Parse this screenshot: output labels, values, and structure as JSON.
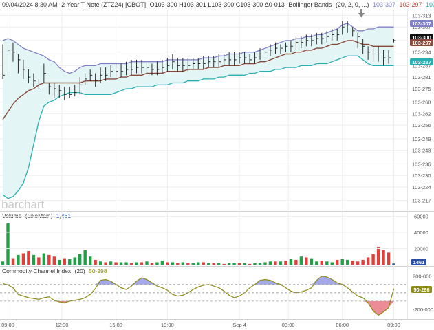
{
  "header": {
    "datetime": "09/04/2024 8:30 AM",
    "instrument": "2-Year T-Note (ZTZ24) [CBOT]",
    "ohlc": "O103-300 H103-301 L103-300 C103-300 Δ0-013",
    "indicator": "Bollinger Bands",
    "indicator_params": "(20, 2, 0, ...)",
    "bb_upper": "103-307",
    "bb_middle": "103-297",
    "bb_lower": "103-287"
  },
  "logo": "barchart",
  "colors": {
    "upper": "#8080c8",
    "middle": "#8a4a3a",
    "lower": "#2ab0b0",
    "band_fill": "#e4f5f5",
    "up_bar": "#2a2a2a",
    "vol_up": "#22a046",
    "vol_down": "#e0403a",
    "vol_last": "#2b4fa8",
    "cci_line": "#8a8a14",
    "cci_pos": "#7c84e0",
    "cci_neg": "#e04050",
    "last_price_tag": "#111111",
    "arrow": "#888888"
  },
  "price_axis": {
    "ticks": [
      "103-313",
      "103-307",
      "103-300",
      "103-294",
      "103-287",
      "103-281",
      "103-275",
      "103-268",
      "103-262",
      "103-256",
      "103-249",
      "103-243",
      "103-236",
      "103-230",
      "103-224",
      "103-217"
    ],
    "tick_values": [
      313,
      307,
      300,
      294,
      287,
      281,
      275,
      268,
      262,
      256,
      249,
      243,
      236,
      230,
      224,
      217
    ],
    "tags": {
      "upper": "103-307",
      "last": "103-300",
      "middle": "103-297",
      "lower": "103-287"
    }
  },
  "volume_pane": {
    "title": "Volume",
    "subtitle": "(LikeMain)",
    "last_value": "1,461",
    "last_tag": "1461",
    "ticks": [
      "60000",
      "40000",
      "20000"
    ],
    "tick_values": [
      60000,
      40000,
      20000
    ]
  },
  "cci_pane": {
    "title": "Commodity Channel Index",
    "params": "(20)",
    "last_value": "50-298",
    "last_tag": "50-298",
    "ticks": [
      "200-000",
      "-200-000"
    ],
    "tick_values": [
      200,
      -200
    ],
    "ref_levels": [
      100,
      0,
      -100
    ]
  },
  "time_axis": {
    "labels": [
      "09:00",
      "12:00",
      "15:00",
      "19:00",
      "Sep 4",
      "03:00",
      "06:00",
      "09:00"
    ],
    "positions": [
      1,
      11.5,
      22,
      32,
      46,
      55.5,
      66,
      76
    ]
  },
  "chart_data": {
    "type": "line",
    "title": "2-Year T-Note (ZTZ24) [CBOT]",
    "price_units": "32nds offsets of 103 (e.g. 300 = 103-300)",
    "ylim": [
      214,
      316
    ],
    "x_range": [
      0,
      77
    ],
    "price_bars": {
      "x": [
        0,
        1,
        2,
        3,
        4,
        5,
        6,
        7,
        8,
        9,
        10,
        11,
        12,
        13,
        14,
        15,
        16,
        17,
        18,
        19,
        20,
        21,
        22,
        23,
        24,
        25,
        26,
        27,
        28,
        29,
        30,
        31,
        32,
        33,
        34,
        35,
        36,
        37,
        38,
        39,
        40,
        41,
        42,
        43,
        44,
        45,
        46,
        47,
        48,
        49,
        50,
        51,
        52,
        53,
        54,
        55,
        56,
        57,
        58,
        59,
        60,
        61,
        62,
        63,
        64,
        65,
        66,
        67,
        68,
        69,
        70,
        71,
        72,
        73,
        74,
        75,
        76
      ],
      "close": [
        282,
        295,
        294,
        290,
        285,
        281,
        279,
        278,
        283,
        276,
        275,
        274,
        272,
        272,
        273,
        277,
        280,
        282,
        279,
        282,
        282,
        284,
        284,
        284,
        285,
        285,
        286,
        286,
        286,
        285,
        285,
        286,
        287,
        289,
        287,
        287,
        287,
        288,
        288,
        288,
        289,
        289,
        289,
        290,
        290,
        290,
        291,
        291,
        290,
        291,
        293,
        294,
        295,
        296,
        296,
        297,
        297,
        299,
        299,
        300,
        300,
        301,
        301,
        302,
        303,
        303,
        307,
        308,
        305,
        302,
        297,
        294,
        293,
        293,
        291,
        291,
        300
      ],
      "high": [
        298,
        298,
        299,
        293,
        290,
        285,
        283,
        280,
        288,
        278,
        278,
        277,
        276,
        276,
        277,
        281,
        283,
        285,
        283,
        286,
        286,
        287,
        288,
        288,
        289,
        290,
        290,
        290,
        289,
        288,
        289,
        290,
        291,
        293,
        291,
        291,
        291,
        291,
        291,
        292,
        292,
        292,
        293,
        293,
        294,
        294,
        294,
        294,
        293,
        294,
        296,
        298,
        298,
        299,
        298,
        299,
        300,
        302,
        302,
        303,
        303,
        304,
        304,
        305,
        306,
        306,
        310,
        310,
        307,
        304,
        301,
        297,
        297,
        297,
        295,
        295,
        301
      ],
      "low": [
        280,
        282,
        289,
        283,
        280,
        278,
        276,
        275,
        278,
        272,
        270,
        270,
        269,
        270,
        271,
        272,
        277,
        279,
        276,
        278,
        279,
        281,
        281,
        281,
        282,
        282,
        283,
        283,
        283,
        282,
        282,
        283,
        284,
        285,
        284,
        284,
        284,
        285,
        285,
        285,
        286,
        286,
        286,
        287,
        287,
        287,
        288,
        288,
        288,
        288,
        290,
        291,
        292,
        293,
        293,
        294,
        294,
        295,
        296,
        297,
        297,
        298,
        298,
        299,
        300,
        300,
        303,
        304,
        302,
        296,
        293,
        290,
        289,
        289,
        287,
        288,
        299
      ]
    },
    "bollinger": {
      "upper": [
        300,
        301,
        300,
        298,
        296,
        295,
        294,
        293,
        292,
        290,
        289,
        286,
        284,
        283,
        284,
        286,
        287,
        287,
        287,
        288,
        288,
        288,
        288,
        288,
        288,
        289,
        289,
        289,
        289,
        289,
        289,
        289,
        290,
        290,
        290,
        290,
        290,
        290,
        290,
        291,
        291,
        291,
        292,
        292,
        293,
        293,
        293,
        294,
        294,
        294,
        295,
        296,
        297,
        298,
        299,
        300,
        300,
        301,
        301,
        302,
        302,
        303,
        303,
        304,
        305,
        306,
        308,
        309,
        307,
        305,
        305,
        306,
        306,
        307,
        307,
        307,
        307
      ],
      "middle": [
        259,
        263,
        267,
        270,
        272,
        274,
        275,
        277,
        278,
        278,
        278,
        278,
        278,
        278,
        278,
        278,
        279,
        279,
        279,
        279,
        280,
        280,
        280,
        281,
        281,
        282,
        282,
        282,
        283,
        283,
        283,
        283,
        284,
        284,
        284,
        284,
        285,
        285,
        285,
        285,
        286,
        286,
        286,
        287,
        287,
        287,
        287,
        288,
        288,
        288,
        289,
        289,
        290,
        291,
        292,
        293,
        293,
        294,
        294,
        295,
        295,
        296,
        296,
        297,
        298,
        298,
        299,
        300,
        300,
        299,
        298,
        298,
        297,
        297,
        297,
        297,
        297
      ],
      "lower": [
        220,
        218,
        219,
        222,
        226,
        234,
        246,
        258,
        266,
        268,
        269,
        271,
        272,
        273,
        273,
        273,
        272,
        272,
        272,
        272,
        272,
        272,
        273,
        274,
        275,
        275,
        276,
        276,
        276,
        276,
        277,
        277,
        277,
        278,
        278,
        278,
        279,
        279,
        279,
        280,
        280,
        280,
        281,
        281,
        282,
        282,
        282,
        282,
        283,
        283,
        284,
        284,
        284,
        285,
        285,
        286,
        286,
        286,
        287,
        287,
        287,
        288,
        288,
        288,
        289,
        290,
        291,
        292,
        292,
        292,
        290,
        288,
        287,
        287,
        287,
        287,
        287
      ]
    },
    "volume": {
      "values": [
        4000,
        51000,
        8000,
        12000,
        14000,
        17000,
        12000,
        9000,
        14000,
        12000,
        10000,
        6000,
        8000,
        7000,
        9000,
        13000,
        18000,
        10000,
        6000,
        4000,
        3000,
        4000,
        3000,
        3000,
        3000,
        2000,
        3000,
        3000,
        4000,
        2000,
        3000,
        5000,
        3000,
        3000,
        2000,
        3000,
        2000,
        2000,
        3000,
        3000,
        2000,
        2000,
        2000,
        1000,
        2000,
        2000,
        2000,
        2000,
        1000,
        2000,
        2000,
        3000,
        4000,
        4000,
        4000,
        5000,
        7000,
        6000,
        10000,
        9000,
        8000,
        4000,
        5000,
        4000,
        3000,
        6000,
        7000,
        6000,
        5000,
        4000,
        6000,
        9000,
        13000,
        22000,
        18000,
        15000,
        1461
      ],
      "direction": [
        "up",
        "up",
        "down",
        "up",
        "down",
        "down",
        "up",
        "down",
        "up",
        "down",
        "down",
        "up",
        "down",
        "up",
        "up",
        "up",
        "up",
        "up",
        "down",
        "up",
        "down",
        "up",
        "down",
        "up",
        "up",
        "down",
        "up",
        "down",
        "up",
        "down",
        "up",
        "up",
        "down",
        "up",
        "down",
        "up",
        "down",
        "up",
        "up",
        "down",
        "up",
        "down",
        "up",
        "down",
        "up",
        "up",
        "down",
        "up",
        "down",
        "up",
        "up",
        "up",
        "up",
        "down",
        "up",
        "down",
        "up",
        "down",
        "up",
        "down",
        "up",
        "up",
        "down",
        "up",
        "up",
        "down",
        "up",
        "up",
        "down",
        "down",
        "down",
        "down",
        "down",
        "down",
        "down",
        "down",
        "last"
      ],
      "ylim": [
        0,
        62000
      ]
    },
    "cci": {
      "values": [
        110,
        95,
        60,
        -20,
        -40,
        -60,
        -70,
        -80,
        -60,
        -50,
        -90,
        -110,
        -120,
        -100,
        -90,
        -80,
        -60,
        -20,
        50,
        150,
        160,
        140,
        100,
        60,
        40,
        80,
        140,
        180,
        160,
        120,
        80,
        60,
        30,
        -20,
        -40,
        -30,
        0,
        40,
        70,
        90,
        100,
        80,
        60,
        20,
        -30,
        -60,
        -40,
        0,
        60,
        100,
        150,
        160,
        150,
        120,
        100,
        60,
        20,
        0,
        10,
        30,
        60,
        150,
        200,
        190,
        160,
        120,
        100,
        60,
        10,
        -40,
        -60,
        -120,
        -220,
        -270,
        -230,
        -180,
        50
      ],
      "ylim": [
        -300,
        280
      ]
    }
  }
}
